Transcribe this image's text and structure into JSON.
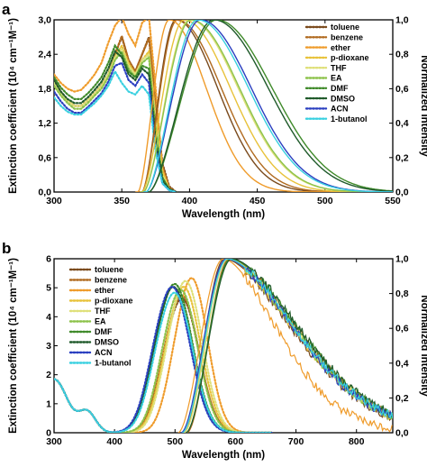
{
  "legend_entries": [
    "toluene",
    "benzene",
    "ether",
    "p-dioxane",
    "THF",
    "EA",
    "DMF",
    "DMSO",
    "ACN",
    "1-butanol"
  ],
  "colors": {
    "toluene": "#7a4a1c",
    "benzene": "#b06a1f",
    "ether": "#ef9b2a",
    "p-dioxane": "#e8c23a",
    "THF": "#dfe07a",
    "EA": "#8cc24a",
    "DMF": "#3f8a2a",
    "DMSO": "#1f5a2a",
    "ACN": "#2a3fc0",
    "1-butanol": "#38d0e0"
  },
  "chart_data": [
    {
      "type": "line",
      "panel_label": "a",
      "xlabel": "Wavelength (nm)",
      "ylabel_left": "Extinction coefficient (10⁴ cm⁻¹M⁻¹)",
      "ylabel_right": "Normalized intensity",
      "xlim": [
        300,
        550
      ],
      "ylim_left": [
        0,
        3.0
      ],
      "ylim_right": [
        0,
        1.0
      ],
      "x_ticks": [
        "300",
        "350",
        "400",
        "450",
        "500",
        "550"
      ],
      "y_left_ticks": [
        "0,0",
        "0,6",
        "1,2",
        "1,8",
        "2,4",
        "3,0"
      ],
      "y_right_ticks": [
        "0,0",
        "0,2",
        "0,4",
        "0,6",
        "0,8",
        "1,0"
      ],
      "legend_position": "top-right",
      "absorption_style": "dotted",
      "emission_style": "solid",
      "absorption": {
        "x": [
          300,
          305,
          310,
          315,
          320,
          325,
          330,
          335,
          340,
          345,
          350,
          355,
          360,
          365,
          370,
          375,
          380,
          385,
          390
        ],
        "series": [
          {
            "name": "toluene",
            "values": [
              1.95,
              1.75,
              1.6,
              1.5,
              1.5,
              1.6,
              1.72,
              1.85,
              2.05,
              2.4,
              2.7,
              2.3,
              2.1,
              2.4,
              2.7,
              1.6,
              0.5,
              0.1,
              0.0
            ]
          },
          {
            "name": "benzene",
            "values": [
              1.95,
              1.75,
              1.6,
              1.5,
              1.5,
              1.6,
              1.72,
              1.86,
              2.05,
              2.4,
              2.72,
              2.3,
              2.1,
              2.4,
              2.68,
              1.5,
              0.45,
              0.08,
              0.0
            ]
          },
          {
            "name": "ether",
            "values": [
              2.05,
              1.9,
              1.8,
              1.75,
              1.78,
              1.9,
              2.05,
              2.25,
              2.6,
              2.9,
              3.05,
              2.75,
              2.55,
              2.95,
              3.05,
              1.8,
              0.4,
              0.05,
              0.0
            ]
          },
          {
            "name": "p-dioxane",
            "values": [
              1.9,
              1.72,
              1.6,
              1.5,
              1.5,
              1.6,
              1.72,
              1.85,
              2.05,
              2.35,
              2.55,
              2.25,
              2.05,
              2.3,
              2.45,
              1.3,
              0.35,
              0.05,
              0.0
            ]
          },
          {
            "name": "THF",
            "values": [
              1.9,
              1.72,
              1.6,
              1.5,
              1.5,
              1.6,
              1.72,
              1.85,
              2.05,
              2.35,
              2.5,
              2.2,
              2.05,
              2.3,
              2.4,
              1.2,
              0.3,
              0.05,
              0.0
            ]
          },
          {
            "name": "EA",
            "values": [
              1.85,
              1.68,
              1.55,
              1.45,
              1.45,
              1.55,
              1.68,
              1.8,
              2.0,
              2.3,
              2.45,
              2.15,
              2.0,
              2.25,
              2.35,
              1.1,
              0.25,
              0.05,
              0.0
            ]
          },
          {
            "name": "DMF",
            "values": [
              2.0,
              1.82,
              1.7,
              1.62,
              1.62,
              1.72,
              1.85,
              2.0,
              2.25,
              2.55,
              2.4,
              2.1,
              2.0,
              2.2,
              2.15,
              1.0,
              0.25,
              0.05,
              0.0
            ]
          },
          {
            "name": "DMSO",
            "values": [
              1.95,
              1.75,
              1.62,
              1.55,
              1.55,
              1.65,
              1.78,
              1.92,
              2.15,
              2.45,
              2.35,
              2.05,
              1.95,
              2.15,
              2.05,
              0.9,
              0.2,
              0.05,
              0.0
            ]
          },
          {
            "name": "ACN",
            "values": [
              1.75,
              1.58,
              1.45,
              1.38,
              1.38,
              1.48,
              1.6,
              1.72,
              1.92,
              2.2,
              2.25,
              1.95,
              1.85,
              2.05,
              1.9,
              0.75,
              0.15,
              0.03,
              0.0
            ]
          },
          {
            "name": "1-butanol",
            "values": [
              1.65,
              1.5,
              1.4,
              1.35,
              1.35,
              1.45,
              1.55,
              1.68,
              1.85,
              2.1,
              1.9,
              1.75,
              1.7,
              1.85,
              1.7,
              0.7,
              0.15,
              0.03,
              0.0
            ]
          }
        ]
      },
      "emission": {
        "series": [
          {
            "name": "toluene",
            "onset": 365,
            "peak": 390,
            "fwhm_low": 14,
            "fwhm_high": 36
          },
          {
            "name": "benzene",
            "onset": 365,
            "peak": 391,
            "fwhm_low": 14,
            "fwhm_high": 38
          },
          {
            "name": "ether",
            "onset": 362,
            "peak": 385,
            "fwhm_low": 12,
            "fwhm_high": 32
          },
          {
            "name": "p-dioxane",
            "onset": 365,
            "peak": 396,
            "fwhm_low": 14,
            "fwhm_high": 40
          },
          {
            "name": "THF",
            "onset": 366,
            "peak": 400,
            "fwhm_low": 15,
            "fwhm_high": 42
          },
          {
            "name": "EA",
            "onset": 366,
            "peak": 401,
            "fwhm_low": 15,
            "fwhm_high": 42
          },
          {
            "name": "DMF",
            "onset": 370,
            "peak": 420,
            "fwhm_low": 20,
            "fwhm_high": 48
          },
          {
            "name": "DMSO",
            "onset": 370,
            "peak": 418,
            "fwhm_low": 20,
            "fwhm_high": 47
          },
          {
            "name": "ACN",
            "onset": 368,
            "peak": 408,
            "fwhm_low": 17,
            "fwhm_high": 44
          },
          {
            "name": "1-butanol",
            "onset": 368,
            "peak": 406,
            "fwhm_low": 17,
            "fwhm_high": 44
          }
        ]
      }
    },
    {
      "type": "line",
      "panel_label": "b",
      "xlabel": "Wavelength (nm)",
      "ylabel_left": "Extinction coefficient (10⁴ cm⁻¹M⁻¹)",
      "ylabel_right": "Normalized intensity",
      "xlim": [
        300,
        860
      ],
      "ylim_left": [
        0,
        6
      ],
      "ylim_right": [
        0,
        1.0
      ],
      "x_ticks": [
        "300",
        "400",
        "500",
        "600",
        "700",
        "800"
      ],
      "y_left_ticks": [
        "0",
        "1",
        "2",
        "3",
        "4",
        "5",
        "6"
      ],
      "y_right_ticks": [
        "0,0",
        "0,2",
        "0,4",
        "0,6",
        "0,8",
        "1,0"
      ],
      "legend_position": "top-left",
      "absorption_style": "dotted",
      "emission_style": "solid",
      "absorption": {
        "series": [
          {
            "name": "toluene",
            "peak": 512,
            "height": 4.6,
            "width": 38
          },
          {
            "name": "benzene",
            "peak": 512,
            "height": 4.7,
            "width": 38
          },
          {
            "name": "ether",
            "peak": 528,
            "height": 5.3,
            "width": 36
          },
          {
            "name": "p-dioxane",
            "peak": 515,
            "height": 5.0,
            "width": 38
          },
          {
            "name": "THF",
            "peak": 518,
            "height": 5.2,
            "width": 38
          },
          {
            "name": "EA",
            "peak": 510,
            "height": 4.9,
            "width": 38
          },
          {
            "name": "DMF",
            "peak": 500,
            "height": 5.1,
            "width": 40
          },
          {
            "name": "DMSO",
            "peak": 498,
            "height": 5.0,
            "width": 40
          },
          {
            "name": "ACN",
            "peak": 496,
            "height": 5.0,
            "width": 40
          },
          {
            "name": "1-butanol",
            "peak": 500,
            "height": 4.8,
            "width": 40
          }
        ]
      },
      "emission": {
        "series": [
          {
            "name": "toluene",
            "peak": 582,
            "onset": 515
          },
          {
            "name": "benzene",
            "peak": 590,
            "onset": 520
          },
          {
            "name": "ether",
            "peak": 580,
            "onset": 505
          },
          {
            "name": "p-dioxane",
            "peak": 585,
            "onset": 515
          },
          {
            "name": "THF",
            "peak": 588,
            "onset": 515
          },
          {
            "name": "EA",
            "peak": 586,
            "onset": 512
          },
          {
            "name": "DMF",
            "peak": 592,
            "onset": 518
          },
          {
            "name": "DMSO",
            "peak": 594,
            "onset": 518
          },
          {
            "name": "ACN",
            "peak": 585,
            "onset": 510
          },
          {
            "name": "1-butanol",
            "peak": 587,
            "onset": 512
          }
        ]
      }
    }
  ]
}
